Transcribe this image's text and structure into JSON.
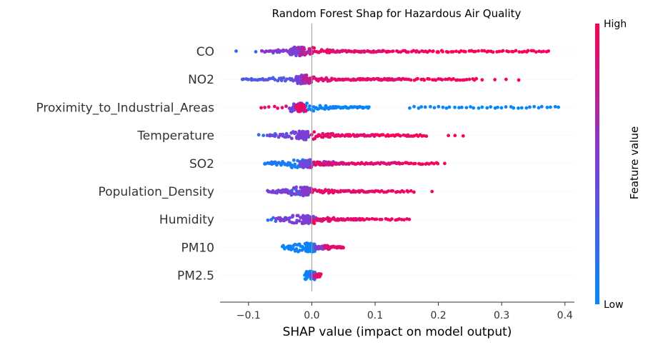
{
  "chart_data": {
    "type": "scatter",
    "subtype": "shap-beeswarm",
    "title": "Random Forest Shap for Hazardous Air Quality",
    "xlabel": "SHAP value (impact on model output)",
    "xlim": [
      -0.145,
      0.415
    ],
    "xticks": [
      {
        "value": -0.1,
        "label": "−0.1"
      },
      {
        "value": 0.0,
        "label": "0.0"
      },
      {
        "value": 0.1,
        "label": "0.1"
      },
      {
        "value": 0.2,
        "label": "0.2"
      },
      {
        "value": 0.3,
        "label": "0.3"
      },
      {
        "value": 0.4,
        "label": "0.4"
      }
    ],
    "colorbar": {
      "label": "Feature value",
      "high": "High",
      "low": "Low",
      "low_color": "#008bfb",
      "high_color": "#ff0052"
    },
    "features": [
      {
        "name": "CO",
        "blue": [
          [
            -0.12,
            -0.03,
            4,
            0.2
          ]
        ],
        "purple": [
          [
            -0.08,
            -0.02,
            28,
            0.55
          ],
          [
            -0.035,
            -0.015,
            50,
            0.5
          ]
        ],
        "red": [
          [
            -0.02,
            0.0,
            20,
            0.75
          ],
          [
            0.0,
            0.12,
            70,
            0.9
          ],
          [
            0.12,
            0.2,
            25,
            0.95
          ],
          [
            0.2,
            0.375,
            45,
            0.97
          ]
        ]
      },
      {
        "name": "NO2",
        "blue": [],
        "purple": [
          [
            -0.11,
            -0.02,
            35,
            0.35
          ],
          [
            -0.025,
            -0.01,
            40,
            0.5
          ]
        ],
        "red": [
          [
            -0.015,
            0.0,
            20,
            0.75
          ],
          [
            0.0,
            0.14,
            85,
            0.9
          ],
          [
            0.14,
            0.26,
            35,
            0.95
          ],
          [
            0.27,
            0.326,
            4,
            0.97
          ]
        ]
      },
      {
        "name": "Proximity_to_Industrial_Areas",
        "blue": [
          [
            -0.01,
            0.09,
            60,
            0.05
          ],
          [
            0.155,
            0.39,
            38,
            0.04
          ]
        ],
        "purple": [
          [
            -0.035,
            -0.01,
            25,
            0.45
          ]
        ],
        "red": [
          [
            -0.08,
            -0.04,
            7,
            0.9
          ],
          [
            -0.025,
            -0.01,
            30,
            0.9
          ]
        ]
      },
      {
        "name": "Temperature",
        "blue": [
          [
            -0.085,
            -0.04,
            6,
            0.15
          ]
        ],
        "purple": [
          [
            -0.07,
            -0.02,
            25,
            0.45
          ],
          [
            -0.025,
            -0.005,
            45,
            0.5
          ]
        ],
        "red": [
          [
            0.0,
            0.1,
            60,
            0.9
          ],
          [
            0.1,
            0.18,
            30,
            0.95
          ],
          [
            0.215,
            0.24,
            3,
            0.97
          ]
        ]
      },
      {
        "name": "SO2",
        "blue": [
          [
            -0.075,
            -0.005,
            50,
            0.1
          ]
        ],
        "purple": [
          [
            -0.02,
            0.0,
            30,
            0.45
          ],
          [
            0.0,
            0.05,
            25,
            0.6
          ]
        ],
        "red": [
          [
            0.0,
            0.14,
            60,
            0.9
          ],
          [
            0.14,
            0.2,
            18,
            0.95
          ],
          [
            0.21,
            0.212,
            1,
            0.97
          ]
        ]
      },
      {
        "name": "Population_Density",
        "blue": [
          [
            -0.05,
            -0.015,
            15,
            0.2
          ]
        ],
        "purple": [
          [
            -0.07,
            -0.01,
            35,
            0.5
          ],
          [
            -0.015,
            0.0,
            40,
            0.55
          ]
        ],
        "red": [
          [
            0.0,
            0.1,
            55,
            0.9
          ],
          [
            0.1,
            0.16,
            18,
            0.95
          ],
          [
            0.19,
            0.19,
            1,
            0.97
          ]
        ]
      },
      {
        "name": "Humidity",
        "blue": [
          [
            -0.07,
            -0.03,
            10,
            0.2
          ]
        ],
        "purple": [
          [
            -0.055,
            -0.005,
            30,
            0.5
          ],
          [
            -0.015,
            0.005,
            40,
            0.5
          ]
        ],
        "red": [
          [
            0.0,
            0.08,
            55,
            0.9
          ],
          [
            0.08,
            0.155,
            20,
            0.95
          ]
        ]
      },
      {
        "name": "PM10",
        "blue": [
          [
            -0.045,
            -0.005,
            35,
            0.05
          ],
          [
            -0.01,
            0.005,
            60,
            0.05
          ]
        ],
        "purple": [
          [
            0.005,
            0.03,
            30,
            0.55
          ]
        ],
        "red": [
          [
            0.02,
            0.05,
            30,
            0.9
          ]
        ]
      },
      {
        "name": "PM2.5",
        "blue": [
          [
            -0.01,
            0.006,
            60,
            0.05
          ]
        ],
        "purple": [
          [
            0.0,
            0.008,
            10,
            0.5
          ]
        ],
        "red": [
          [
            0.006,
            0.015,
            12,
            0.9
          ]
        ]
      }
    ]
  }
}
